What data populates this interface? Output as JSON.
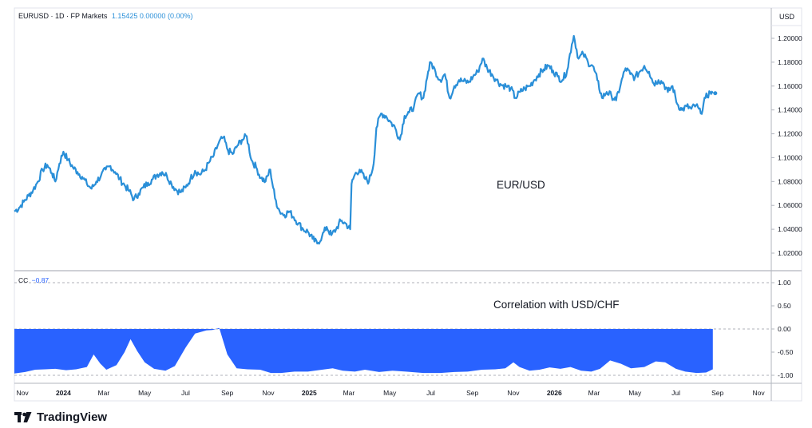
{
  "header": {
    "symbol_text": "EURUSD · 1D · FP Markets",
    "last_value": "1.15425 0.00000 (0.00%)"
  },
  "currency_label": "USD",
  "indicator": {
    "name": "CC",
    "value": "−0.87"
  },
  "annotations": {
    "price": "EUR/USD",
    "correlation": "Correlation with USD/CHF"
  },
  "brand": "TradingView",
  "colors": {
    "price_line": "#2a8fd8",
    "correlation_fill": "#2962ff",
    "last_value": "#2a8fd8",
    "grid": "#e0e3eb"
  },
  "chart_data": [
    {
      "type": "line",
      "title": "EURUSD · 1D · FP Markets",
      "ylabel": "USD",
      "ylim": [
        1.01,
        1.21
      ],
      "yticks": [
        1.02,
        1.04,
        1.06,
        1.08,
        1.1,
        1.12,
        1.14,
        1.16,
        1.18,
        1.2
      ],
      "ytick_labels": [
        "1.02000",
        "1.04000",
        "1.06000",
        "1.08000",
        "1.10000",
        "1.12000",
        "1.14000",
        "1.16000",
        "1.18000",
        "1.20000"
      ],
      "xlim": [
        "2023-10-20",
        "2026-11-20"
      ],
      "xticks": [
        "2023-11-01",
        "2024-01-01",
        "2024-03-01",
        "2024-05-01",
        "2024-07-01",
        "2024-09-01",
        "2024-11-01",
        "2025-01-01",
        "2025-03-01",
        "2025-05-01",
        "2025-07-01",
        "2025-09-01",
        "2025-11-01",
        "2026-01-01",
        "2026-03-01",
        "2026-05-01",
        "2026-07-01",
        "2026-09-01",
        "2026-11-01"
      ],
      "xtick_labels": [
        "Nov",
        "2024",
        "Mar",
        "May",
        "Jul",
        "Sep",
        "Nov",
        "2025",
        "Mar",
        "May",
        "Jul",
        "Sep",
        "Nov",
        "2026",
        "Mar",
        "May",
        "Jul",
        "Sep",
        "Nov"
      ],
      "series": [
        {
          "points": [
            [
              "2023-10-20",
              1.055
            ],
            [
              "2023-10-27",
              1.058
            ],
            [
              "2023-11-03",
              1.063
            ],
            [
              "2023-11-10",
              1.068
            ],
            [
              "2023-11-17",
              1.073
            ],
            [
              "2023-11-24",
              1.08
            ],
            [
              "2023-12-01",
              1.09
            ],
            [
              "2023-12-08",
              1.094
            ],
            [
              "2023-12-15",
              1.087
            ],
            [
              "2023-12-20",
              1.08
            ],
            [
              "2023-12-26",
              1.095
            ],
            [
              "2024-01-01",
              1.105
            ],
            [
              "2024-01-08",
              1.098
            ],
            [
              "2024-01-15",
              1.092
            ],
            [
              "2024-01-22",
              1.088
            ],
            [
              "2024-01-29",
              1.084
            ],
            [
              "2024-02-05",
              1.078
            ],
            [
              "2024-02-12",
              1.074
            ],
            [
              "2024-02-19",
              1.08
            ],
            [
              "2024-02-26",
              1.085
            ],
            [
              "2024-03-04",
              1.09
            ],
            [
              "2024-03-11",
              1.093
            ],
            [
              "2024-03-18",
              1.088
            ],
            [
              "2024-03-25",
              1.082
            ],
            [
              "2024-04-01",
              1.077
            ],
            [
              "2024-04-08",
              1.072
            ],
            [
              "2024-04-15",
              1.065
            ],
            [
              "2024-04-22",
              1.07
            ],
            [
              "2024-04-29",
              1.075
            ],
            [
              "2024-05-06",
              1.079
            ],
            [
              "2024-05-13",
              1.082
            ],
            [
              "2024-05-20",
              1.086
            ],
            [
              "2024-05-27",
              1.088
            ],
            [
              "2024-06-03",
              1.085
            ],
            [
              "2024-06-10",
              1.078
            ],
            [
              "2024-06-17",
              1.073
            ],
            [
              "2024-06-24",
              1.071
            ],
            [
              "2024-07-01",
              1.075
            ],
            [
              "2024-07-08",
              1.082
            ],
            [
              "2024-07-15",
              1.089
            ],
            [
              "2024-07-22",
              1.086
            ],
            [
              "2024-07-29",
              1.089
            ],
            [
              "2024-08-05",
              1.096
            ],
            [
              "2024-08-12",
              1.102
            ],
            [
              "2024-08-19",
              1.112
            ],
            [
              "2024-08-26",
              1.117
            ],
            [
              "2024-09-02",
              1.106
            ],
            [
              "2024-09-09",
              1.103
            ],
            [
              "2024-09-16",
              1.11
            ],
            [
              "2024-09-23",
              1.115
            ],
            [
              "2024-09-30",
              1.118
            ],
            [
              "2024-10-07",
              1.098
            ],
            [
              "2024-10-14",
              1.092
            ],
            [
              "2024-10-21",
              1.083
            ],
            [
              "2024-10-28",
              1.08
            ],
            [
              "2024-11-04",
              1.09
            ],
            [
              "2024-11-11",
              1.066
            ],
            [
              "2024-11-18",
              1.055
            ],
            [
              "2024-11-25",
              1.052
            ],
            [
              "2024-12-02",
              1.055
            ],
            [
              "2024-12-09",
              1.05
            ],
            [
              "2024-12-16",
              1.045
            ],
            [
              "2024-12-23",
              1.04
            ],
            [
              "2024-12-30",
              1.038
            ],
            [
              "2025-01-06",
              1.032
            ],
            [
              "2025-01-13",
              1.028
            ],
            [
              "2025-01-20",
              1.034
            ],
            [
              "2025-01-27",
              1.042
            ],
            [
              "2025-02-03",
              1.035
            ],
            [
              "2025-02-10",
              1.04
            ],
            [
              "2025-02-17",
              1.047
            ],
            [
              "2025-02-24",
              1.045
            ],
            [
              "2025-03-03",
              1.04
            ],
            [
              "2025-03-05",
              1.078
            ],
            [
              "2025-03-10",
              1.086
            ],
            [
              "2025-03-17",
              1.09
            ],
            [
              "2025-03-24",
              1.083
            ],
            [
              "2025-03-31",
              1.08
            ],
            [
              "2025-04-07",
              1.095
            ],
            [
              "2025-04-11",
              1.125
            ],
            [
              "2025-04-18",
              1.137
            ],
            [
              "2025-04-25",
              1.135
            ],
            [
              "2025-05-02",
              1.13
            ],
            [
              "2025-05-09",
              1.125
            ],
            [
              "2025-05-16",
              1.115
            ],
            [
              "2025-05-23",
              1.135
            ],
            [
              "2025-05-30",
              1.138
            ],
            [
              "2025-06-06",
              1.143
            ],
            [
              "2025-06-13",
              1.154
            ],
            [
              "2025-06-20",
              1.15
            ],
            [
              "2025-06-27",
              1.172
            ],
            [
              "2025-07-01",
              1.18
            ],
            [
              "2025-07-08",
              1.172
            ],
            [
              "2025-07-15",
              1.165
            ],
            [
              "2025-07-22",
              1.17
            ],
            [
              "2025-07-29",
              1.15
            ],
            [
              "2025-08-05",
              1.16
            ],
            [
              "2025-08-12",
              1.165
            ],
            [
              "2025-08-19",
              1.164
            ],
            [
              "2025-08-26",
              1.163
            ],
            [
              "2025-09-02",
              1.168
            ],
            [
              "2025-09-09",
              1.172
            ],
            [
              "2025-09-16",
              1.183
            ],
            [
              "2025-09-23",
              1.175
            ],
            [
              "2025-09-30",
              1.17
            ],
            [
              "2025-10-07",
              1.165
            ],
            [
              "2025-10-14",
              1.161
            ],
            [
              "2025-10-21",
              1.16
            ],
            [
              "2025-10-28",
              1.158
            ],
            [
              "2025-11-04",
              1.15
            ],
            [
              "2025-11-11",
              1.155
            ],
            [
              "2025-11-18",
              1.158
            ],
            [
              "2025-11-25",
              1.16
            ],
            [
              "2025-12-02",
              1.165
            ],
            [
              "2025-12-09",
              1.17
            ],
            [
              "2025-12-16",
              1.174
            ],
            [
              "2025-12-23",
              1.177
            ],
            [
              "2025-12-30",
              1.173
            ],
            [
              "2026-01-06",
              1.168
            ],
            [
              "2026-01-13",
              1.165
            ],
            [
              "2026-01-20",
              1.173
            ],
            [
              "2026-01-27",
              1.195
            ],
            [
              "2026-01-30",
              1.202
            ],
            [
              "2026-02-06",
              1.183
            ],
            [
              "2026-02-13",
              1.187
            ],
            [
              "2026-02-20",
              1.18
            ],
            [
              "2026-02-27",
              1.177
            ],
            [
              "2026-03-06",
              1.165
            ],
            [
              "2026-03-13",
              1.15
            ],
            [
              "2026-03-20",
              1.155
            ],
            [
              "2026-03-27",
              1.152
            ],
            [
              "2026-04-03",
              1.148
            ],
            [
              "2026-04-10",
              1.162
            ],
            [
              "2026-04-17",
              1.175
            ],
            [
              "2026-04-24",
              1.17
            ],
            [
              "2026-05-01",
              1.167
            ],
            [
              "2026-05-08",
              1.172
            ],
            [
              "2026-05-15",
              1.177
            ],
            [
              "2026-05-22",
              1.172
            ],
            [
              "2026-05-29",
              1.162
            ],
            [
              "2026-06-05",
              1.165
            ],
            [
              "2026-06-12",
              1.163
            ],
            [
              "2026-06-19",
              1.155
            ],
            [
              "2026-06-26",
              1.16
            ],
            [
              "2026-07-03",
              1.145
            ],
            [
              "2026-07-10",
              1.14
            ],
            [
              "2026-07-17",
              1.143
            ],
            [
              "2026-07-24",
              1.141
            ],
            [
              "2026-07-31",
              1.144
            ],
            [
              "2026-08-07",
              1.137
            ],
            [
              "2026-08-14",
              1.15
            ],
            [
              "2026-08-21",
              1.155
            ],
            [
              "2026-08-25",
              1.154
            ]
          ]
        }
      ]
    },
    {
      "type": "area",
      "title": "CC −0.87",
      "ylim": [
        -1.3,
        1.3
      ],
      "yticks": [
        -1.0,
        -0.5,
        0.0,
        0.5,
        1.0
      ],
      "ytick_labels": [
        "-1.00",
        "-0.50",
        "0.00",
        "0.50",
        "1.00"
      ],
      "baseline": 0,
      "series": [
        {
          "name": "Correlation with USD/CHF",
          "points": [
            [
              "2023-10-20",
              -0.96
            ],
            [
              "2023-11-05",
              -0.93
            ],
            [
              "2023-11-20",
              -0.88
            ],
            [
              "2023-12-05",
              -0.87
            ],
            [
              "2023-12-20",
              -0.86
            ],
            [
              "2024-01-05",
              -0.89
            ],
            [
              "2024-01-20",
              -0.87
            ],
            [
              "2024-02-05",
              -0.82
            ],
            [
              "2024-02-15",
              -0.55
            ],
            [
              "2024-02-25",
              -0.75
            ],
            [
              "2024-03-05",
              -0.88
            ],
            [
              "2024-03-20",
              -0.78
            ],
            [
              "2024-04-01",
              -0.5
            ],
            [
              "2024-04-10",
              -0.22
            ],
            [
              "2024-04-20",
              -0.48
            ],
            [
              "2024-05-01",
              -0.72
            ],
            [
              "2024-05-15",
              -0.86
            ],
            [
              "2024-06-01",
              -0.9
            ],
            [
              "2024-06-15",
              -0.8
            ],
            [
              "2024-07-01",
              -0.4
            ],
            [
              "2024-07-15",
              -0.1
            ],
            [
              "2024-08-01",
              -0.03
            ],
            [
              "2024-08-10",
              -0.02
            ],
            [
              "2024-08-20",
              0.02
            ],
            [
              "2024-09-01",
              -0.55
            ],
            [
              "2024-09-15",
              -0.85
            ],
            [
              "2024-10-01",
              -0.87
            ],
            [
              "2024-10-20",
              -0.88
            ],
            [
              "2024-11-05",
              -0.95
            ],
            [
              "2024-11-20",
              -0.95
            ],
            [
              "2024-12-10",
              -0.92
            ],
            [
              "2024-12-30",
              -0.92
            ],
            [
              "2025-01-20",
              -0.88
            ],
            [
              "2025-02-05",
              -0.85
            ],
            [
              "2025-02-20",
              -0.9
            ],
            [
              "2025-03-10",
              -0.92
            ],
            [
              "2025-03-25",
              -0.88
            ],
            [
              "2025-04-15",
              -0.93
            ],
            [
              "2025-05-05",
              -0.9
            ],
            [
              "2025-05-25",
              -0.92
            ],
            [
              "2025-06-20",
              -0.95
            ],
            [
              "2025-07-15",
              -0.95
            ],
            [
              "2025-08-05",
              -0.93
            ],
            [
              "2025-08-25",
              -0.92
            ],
            [
              "2025-09-15",
              -0.88
            ],
            [
              "2025-10-05",
              -0.87
            ],
            [
              "2025-10-20",
              -0.85
            ],
            [
              "2025-11-01",
              -0.72
            ],
            [
              "2025-11-10",
              -0.82
            ],
            [
              "2025-11-25",
              -0.9
            ],
            [
              "2025-12-10",
              -0.88
            ],
            [
              "2025-12-25",
              -0.83
            ],
            [
              "2026-01-10",
              -0.86
            ],
            [
              "2026-01-25",
              -0.82
            ],
            [
              "2026-02-10",
              -0.9
            ],
            [
              "2026-02-25",
              -0.92
            ],
            [
              "2026-03-10",
              -0.86
            ],
            [
              "2026-03-25",
              -0.68
            ],
            [
              "2026-04-10",
              -0.75
            ],
            [
              "2026-04-25",
              -0.85
            ],
            [
              "2026-05-15",
              -0.82
            ],
            [
              "2026-06-01",
              -0.7
            ],
            [
              "2026-06-15",
              -0.72
            ],
            [
              "2026-07-01",
              -0.86
            ],
            [
              "2026-07-15",
              -0.92
            ],
            [
              "2026-08-01",
              -0.95
            ],
            [
              "2026-08-15",
              -0.94
            ],
            [
              "2026-08-25",
              -0.87
            ]
          ]
        }
      ]
    }
  ]
}
